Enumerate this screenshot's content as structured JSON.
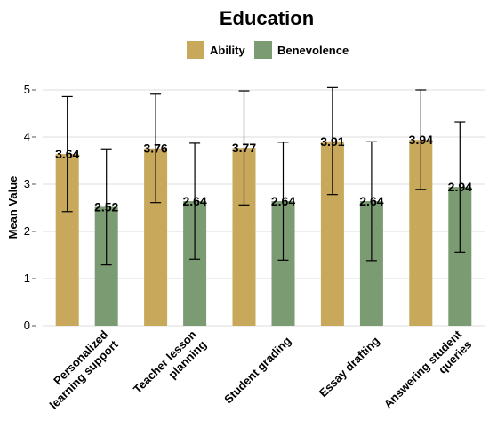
{
  "chart_data": {
    "type": "bar",
    "title": "Education",
    "xlabel": "",
    "ylabel": "Mean Value",
    "ylim": [
      0,
      5
    ],
    "yticks": [
      0,
      1,
      2,
      3,
      4,
      5
    ],
    "grid": true,
    "legend_position": "top-center",
    "categories": [
      "Personalized learning support",
      "Teacher lesson planning",
      "Student grading",
      "Essay drafting",
      "Answering student queries"
    ],
    "series": [
      {
        "name": "Ability",
        "color": "#c8a85a",
        "values": [
          3.64,
          3.76,
          3.77,
          3.91,
          3.94
        ],
        "error_low": [
          2.42,
          2.61,
          2.56,
          2.78,
          2.89
        ],
        "error_high": [
          4.86,
          4.91,
          4.98,
          5.05,
          5.0
        ]
      },
      {
        "name": "Benevolence",
        "color": "#7b9b73",
        "values": [
          2.52,
          2.64,
          2.64,
          2.64,
          2.94
        ],
        "error_low": [
          1.29,
          1.41,
          1.39,
          1.38,
          1.56
        ],
        "error_high": [
          3.75,
          3.87,
          3.89,
          3.9,
          4.32
        ]
      }
    ]
  }
}
